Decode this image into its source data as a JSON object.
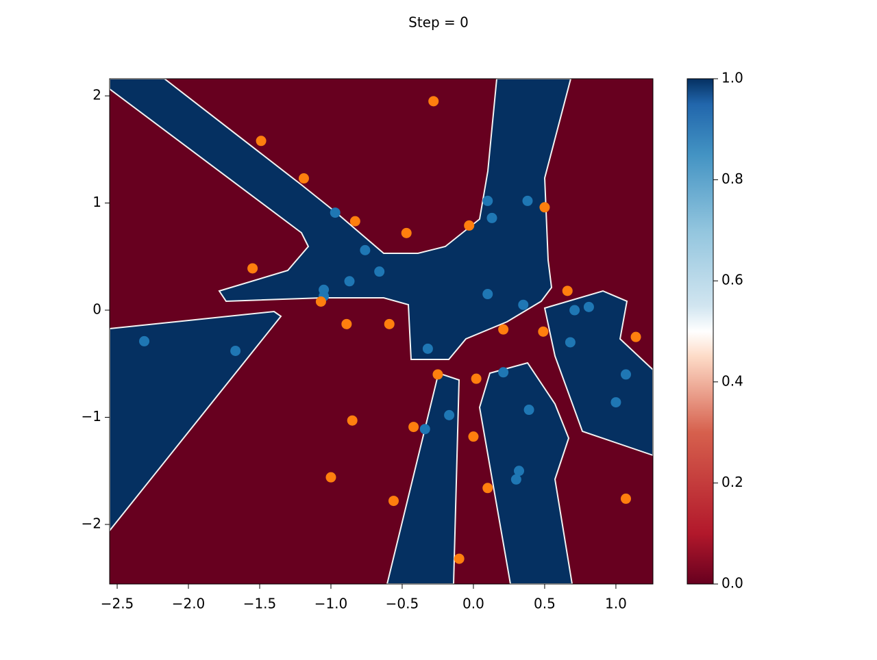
{
  "chart_data": {
    "type": "scatter",
    "title": "Step = 0",
    "xlim": [
      -2.553,
      1.26
    ],
    "ylim": [
      -2.556,
      2.16
    ],
    "xticks": [
      {
        "value": -2.5,
        "label": "−2.5"
      },
      {
        "value": -2.0,
        "label": "−2.0"
      },
      {
        "value": -1.5,
        "label": "−1.5"
      },
      {
        "value": -1.0,
        "label": "−1.0"
      },
      {
        "value": -0.5,
        "label": "−0.5"
      },
      {
        "value": 0,
        "label": "0.0"
      },
      0.5,
      {
        "value": 1.0,
        "label": "1.0"
      }
    ],
    "yticks": [
      {
        "value": -2,
        "label": "−2"
      },
      {
        "value": -1,
        "label": "−1"
      },
      0,
      1,
      2
    ],
    "series": [
      {
        "color": "#1f77b4",
        "x": [
          -2.31,
          -1.67,
          -0.97,
          -1.05,
          -1.05,
          -0.87,
          -0.76,
          -0.66,
          -0.32,
          0.1,
          0.13,
          0.38,
          0.1,
          0.35,
          0.71,
          0.81,
          0.68,
          1.07,
          1.0,
          0.21,
          0.39,
          -0.17,
          -0.34,
          0.32,
          0.3
        ],
        "values": [
          -0.29,
          -0.38,
          0.91,
          0.19,
          0.13,
          0.27,
          0.56,
          0.36,
          -0.36,
          1.02,
          0.86,
          1.02,
          0.15,
          0.05,
          0.0,
          0.03,
          -0.3,
          -0.6,
          -0.86,
          -0.58,
          -0.93,
          -0.98,
          -1.11,
          -1.5,
          -1.58
        ]
      },
      {
        "color": "#ff7f0e",
        "x": [
          -0.28,
          -1.49,
          -1.19,
          -0.83,
          -0.47,
          -0.03,
          0.5,
          -1.55,
          -1.07,
          -0.89,
          -0.59,
          0.66,
          0.21,
          0.49,
          1.14,
          -0.25,
          0.02,
          -0.85,
          -0.42,
          0.0,
          -1.0,
          -0.56,
          0.1,
          1.07,
          -0.1
        ],
        "values": [
          1.95,
          1.58,
          1.23,
          0.83,
          0.72,
          0.79,
          0.96,
          0.39,
          0.08,
          -0.13,
          -0.13,
          0.18,
          -0.18,
          -0.2,
          -0.25,
          -0.6,
          -0.64,
          -1.03,
          -1.09,
          -1.18,
          -1.56,
          -1.78,
          -1.66,
          -1.76,
          -2.32
        ]
      }
    ],
    "colorbar": {
      "lim": [
        0,
        1
      ],
      "ticks": [
        {
          "value": 0,
          "label": "0.0"
        },
        {
          "value": 0.2,
          "label": "0.2"
        },
        {
          "value": 0.4,
          "label": "0.4"
        },
        {
          "value": 0.6,
          "label": "0.6"
        },
        {
          "value": 0.8,
          "label": "0.8"
        },
        {
          "value": 1,
          "label": "1.0"
        }
      ]
    }
  }
}
